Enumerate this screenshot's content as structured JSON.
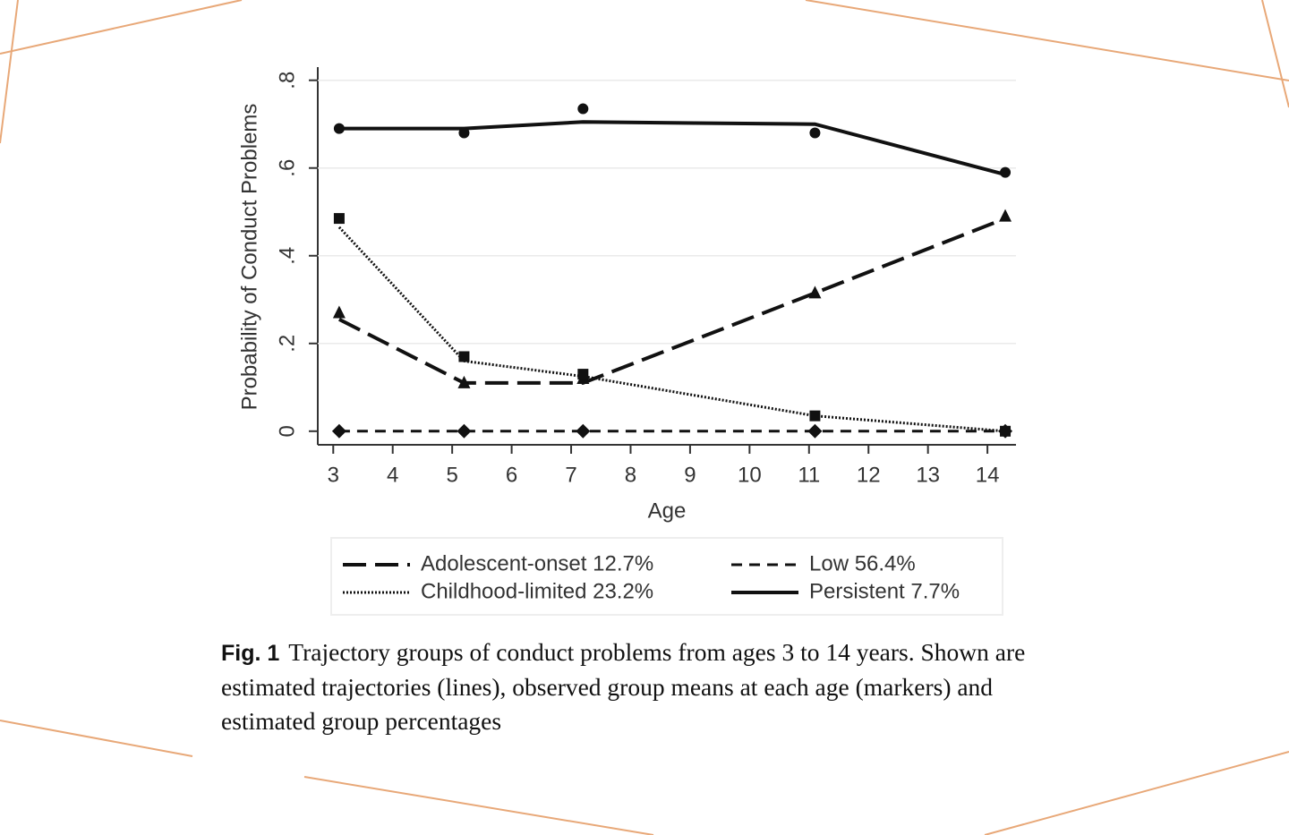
{
  "chart_data": {
    "type": "line",
    "x_label": "Age",
    "y_label": "Probability of Conduct Problems",
    "x": [
      3.1,
      5.2,
      7.2,
      11.1,
      14.3
    ],
    "xlim": [
      2.74,
      14.48
    ],
    "xticks": [
      3,
      4,
      5,
      6,
      7,
      8,
      9,
      10,
      11,
      12,
      13,
      14
    ],
    "ylim": [
      -0.031,
      0.83
    ],
    "yticks": [
      0,
      {
        "value": 0.2,
        "label": ".2"
      },
      {
        "value": 0.4,
        "label": ".4"
      },
      {
        "value": 0.6,
        "label": ".6"
      },
      {
        "value": 0.8,
        "label": ".8"
      }
    ],
    "grid": true,
    "series": [
      {
        "name": "Adolescent-onset 12.7%",
        "color": "#111111",
        "dash": "longdash",
        "marker": "triangle",
        "values": [
          0.255,
          0.11,
          0.11,
          0.315,
          0.485
        ],
        "markers": [
          0.27,
          0.11,
          0.12,
          0.315,
          0.49
        ]
      },
      {
        "name": "Low 56.4%",
        "color": "#111111",
        "dash": "dash",
        "marker": "diamond",
        "values": [
          0,
          0,
          0,
          0,
          0
        ],
        "markers": [
          0,
          0,
          0,
          0,
          0
        ]
      },
      {
        "name": "Childhood-limited 23.2%",
        "color": "#111111",
        "dash": "dot",
        "marker": "square",
        "values": [
          0.465,
          0.16,
          0.125,
          0.035,
          0
        ],
        "markers": [
          0.485,
          0.17,
          0.13,
          0.035,
          0
        ]
      },
      {
        "name": "Persistent 7.7%",
        "color": "#111111",
        "dash": "solid",
        "marker": "circle",
        "values": [
          0.69,
          0.69,
          0.705,
          0.7,
          0.585
        ],
        "markers": [
          0.69,
          0.68,
          0.735,
          0.68,
          0.59
        ]
      }
    ]
  },
  "caption": {
    "label": "Fig. 1",
    "text": "Trajectory groups of conduct problems from ages 3 to 14 years. Shown are estimated trajectories (lines), observed group means at each age (markers) and estimated group percentages"
  }
}
